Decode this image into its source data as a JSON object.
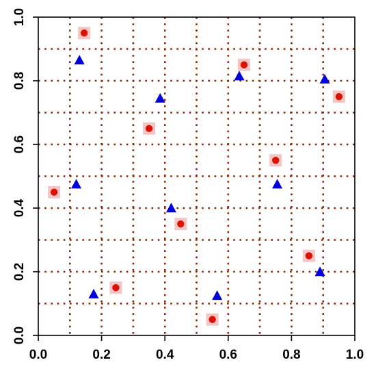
{
  "chart_data": {
    "type": "scatter",
    "title": "",
    "xlabel": "",
    "ylabel": "",
    "xlim": [
      0.0,
      1.0
    ],
    "ylim": [
      0.0,
      1.0
    ],
    "x_ticks": [
      "0.0",
      "0.2",
      "0.4",
      "0.6",
      "0.8",
      "1.0"
    ],
    "y_ticks": [
      "0.0",
      "0.2",
      "0.4",
      "0.6",
      "0.8",
      "1.0"
    ],
    "grid": true,
    "grid_style": "dotted",
    "grid_lines_x": [
      0.1,
      0.2,
      0.3,
      0.4,
      0.5,
      0.6,
      0.7,
      0.8,
      0.9
    ],
    "grid_lines_y": [
      0.1,
      0.2,
      0.3,
      0.4,
      0.5,
      0.6,
      0.7,
      0.8,
      0.9
    ],
    "colors": {
      "grid": "#8B2500",
      "circle": "#DD1100",
      "triangle": "#0000DD",
      "halo": "#F6C6C6",
      "axis": "#000000"
    },
    "series": [
      {
        "marker": "circle",
        "color": "#DD1100",
        "points": [
          [
            0.145,
            0.95
          ],
          [
            0.65,
            0.85
          ],
          [
            0.95,
            0.75
          ],
          [
            0.35,
            0.65
          ],
          [
            0.75,
            0.55
          ],
          [
            0.05,
            0.45
          ],
          [
            0.45,
            0.35
          ],
          [
            0.855,
            0.25
          ],
          [
            0.245,
            0.15
          ],
          [
            0.55,
            0.05
          ]
        ]
      },
      {
        "marker": "triangle",
        "color": "#0000DD",
        "points": [
          [
            0.13,
            0.865
          ],
          [
            0.905,
            0.805
          ],
          [
            0.635,
            0.815
          ],
          [
            0.385,
            0.745
          ],
          [
            0.12,
            0.475
          ],
          [
            0.755,
            0.475
          ],
          [
            0.42,
            0.4
          ],
          [
            0.89,
            0.2
          ],
          [
            0.175,
            0.13
          ],
          [
            0.565,
            0.125
          ]
        ]
      }
    ]
  }
}
